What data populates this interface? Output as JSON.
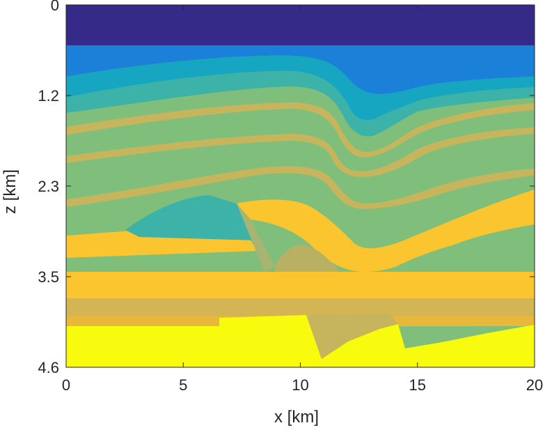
{
  "chart_data": {
    "type": "heatmap",
    "title": "",
    "xlabel": "x [km]",
    "ylabel": "z [km]",
    "xlim": [
      0,
      20
    ],
    "ylim": [
      0,
      4.6
    ],
    "y_reversed": true,
    "x_ticks": [
      0,
      5,
      10,
      15,
      20
    ],
    "x_tick_labels": [
      "0",
      "5",
      "10",
      "15",
      "20"
    ],
    "y_ticks": [
      0,
      1.15,
      2.3,
      3.45,
      4.6
    ],
    "y_tick_labels": [
      "0",
      "1.2",
      "2.3",
      "3.5",
      "4.6"
    ],
    "grid": false,
    "colormap": "parula",
    "colors": {
      "water": "#352a87",
      "slow": "#1a80d8",
      "cyan": "#17a6c2",
      "teal": "#3cb2a8",
      "green": "#7fbf7b",
      "tan": "#c7b55e",
      "gold": "#fbc52f",
      "yellow": "#f9fb0e"
    }
  }
}
